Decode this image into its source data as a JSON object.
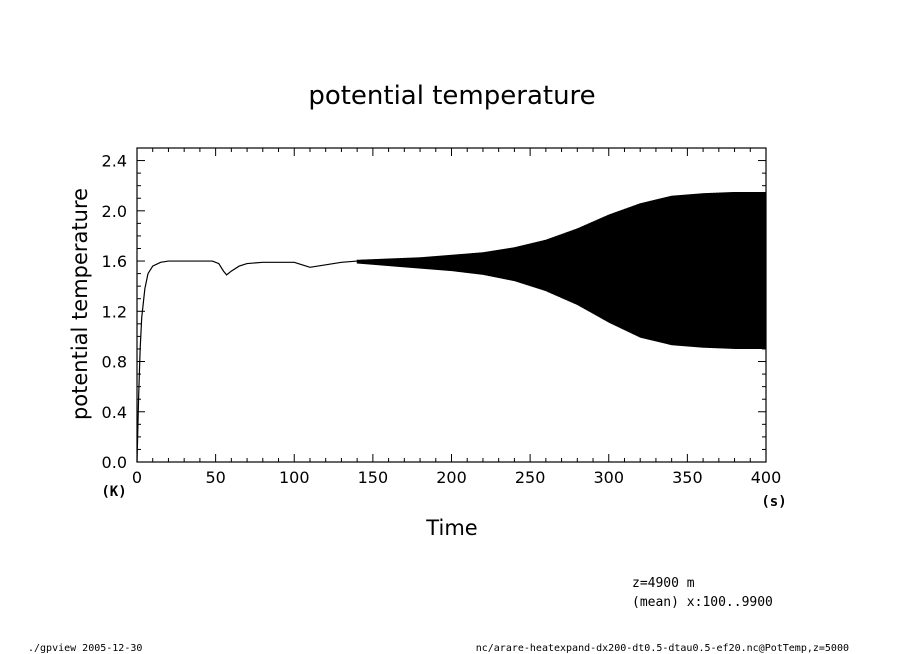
{
  "chart_data": {
    "type": "line",
    "title": "potential temperature",
    "ylabel": "potential temperature",
    "xlabel": "Time",
    "xunit": "(s)",
    "yunit": "(K)",
    "xlim": [
      0,
      400
    ],
    "ylim": [
      0.0,
      2.5
    ],
    "xticks": [
      "0",
      "50",
      "100",
      "150",
      "200",
      "250",
      "300",
      "350",
      "400"
    ],
    "yticks": [
      "0.0",
      "0.4",
      "0.8",
      "1.2",
      "1.6",
      "2.0",
      "2.4"
    ],
    "grid": false,
    "mean_curve": {
      "x": [
        0,
        1,
        2,
        3,
        5,
        7,
        10,
        15,
        20,
        30,
        40,
        48,
        52,
        55,
        57,
        60,
        65,
        70,
        80,
        90,
        100,
        105,
        110,
        115,
        120,
        130,
        140,
        150,
        160,
        200,
        250,
        300,
        350,
        400
      ],
      "y": [
        0.0,
        0.5,
        0.9,
        1.15,
        1.38,
        1.5,
        1.56,
        1.59,
        1.6,
        1.6,
        1.6,
        1.6,
        1.58,
        1.52,
        1.49,
        1.52,
        1.56,
        1.58,
        1.59,
        1.59,
        1.59,
        1.57,
        1.55,
        1.56,
        1.57,
        1.59,
        1.6,
        1.6,
        1.58,
        1.57,
        1.57,
        1.57,
        1.57,
        1.57
      ]
    },
    "oscillation_envelope": {
      "x": [
        140,
        160,
        180,
        200,
        220,
        240,
        260,
        280,
        300,
        320,
        340,
        360,
        380,
        400
      ],
      "upper": [
        1.61,
        1.62,
        1.63,
        1.65,
        1.67,
        1.71,
        1.77,
        1.86,
        1.97,
        2.06,
        2.12,
        2.14,
        2.15,
        2.15
      ],
      "lower": [
        1.58,
        1.56,
        1.54,
        1.52,
        1.49,
        1.44,
        1.36,
        1.25,
        1.11,
        0.99,
        0.93,
        0.91,
        0.9,
        0.9
      ]
    }
  },
  "annotations": {
    "line1": "z=4900  m",
    "line2": "(mean) x:100..9900"
  },
  "footer": {
    "left": "./gpview  2005-12-30",
    "right": "nc/arare-heatexpand-dx200-dt0.5-dtau0.5-ef20.nc@PotTemp,z=5000"
  }
}
